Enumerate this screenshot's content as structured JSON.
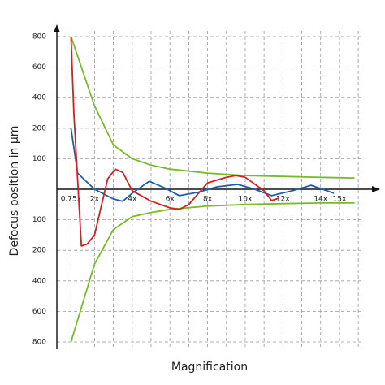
{
  "chart_data": {
    "type": "line",
    "x_label": "Magnification",
    "y_label": "Defocus position in µm",
    "xlim": [
      0,
      16.9
    ],
    "ylim": [
      -800,
      800
    ],
    "xticks": [
      {
        "value": 0.75,
        "label": "0.75x"
      },
      {
        "value": 2,
        "label": "2x"
      },
      {
        "value": 4,
        "label": "4x"
      },
      {
        "value": 6,
        "label": "6x"
      },
      {
        "value": 8,
        "label": "8x"
      },
      {
        "value": 10,
        "label": "10x"
      },
      {
        "value": 12,
        "label": "12x"
      },
      {
        "value": 14,
        "label": "14x"
      },
      {
        "value": 15,
        "label": "15x"
      }
    ],
    "xgrid": [
      0.75,
      2,
      3,
      4,
      5,
      6,
      7,
      8,
      9,
      10,
      11,
      12,
      13,
      14,
      15,
      16
    ],
    "yticks": [
      800,
      600,
      400,
      200,
      100,
      {
        "value": -100,
        "label": "100"
      },
      {
        "value": -200,
        "label": "200"
      },
      {
        "value": -400,
        "label": "400"
      },
      {
        "value": -600,
        "label": "600"
      },
      {
        "value": -800,
        "label": "800"
      }
    ],
    "grid": true,
    "series": [
      {
        "color": "#7ab929",
        "x": [
          0.75,
          2,
          3,
          4,
          5,
          6,
          8,
          10,
          12,
          14,
          15.8
        ],
        "values": [
          800,
          346,
          145,
          100,
          79,
          66,
          53,
          45,
          42,
          39,
          37
        ]
      },
      {
        "color": "#7ab929",
        "x": [
          0.75,
          2,
          3,
          4,
          5,
          6,
          8,
          10,
          12,
          14,
          15.8
        ],
        "values": [
          -800,
          -290,
          -132,
          -90,
          -76,
          -66,
          -55,
          -50,
          -47,
          -45,
          -45
        ]
      },
      {
        "color": "#1f5fa8",
        "x": [
          0.75,
          1.1,
          2,
          3,
          3.5,
          4,
          4.9,
          5.7,
          6.5,
          7.5,
          8.5,
          9.6,
          10.5,
          11.4,
          12.5,
          13.5,
          14.7
        ],
        "values": [
          200,
          53,
          0,
          -32,
          -39,
          -13,
          26,
          5,
          -21,
          -10,
          8,
          16,
          0,
          -21,
          -5,
          13,
          -13
        ]
      },
      {
        "color": "#d42020",
        "x": [
          0.75,
          0.9,
          1.3,
          1.6,
          2,
          2.3,
          2.7,
          3.1,
          3.5,
          4,
          5,
          6,
          6.5,
          7,
          8,
          9,
          9.5,
          10,
          11,
          11.4,
          11.8
        ],
        "values": [
          800,
          300,
          -186,
          -180,
          -150,
          -71,
          34,
          66,
          55,
          -5,
          -39,
          -61,
          -66,
          -50,
          21,
          39,
          45,
          39,
          -5,
          -37,
          -29
        ]
      }
    ]
  }
}
